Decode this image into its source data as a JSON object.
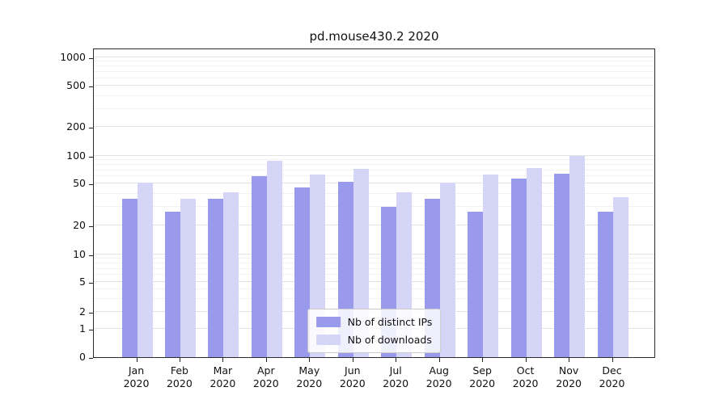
{
  "title": "pd.mouse430.2 2020",
  "chart_data": {
    "type": "bar",
    "title": "pd.mouse430.2 2020",
    "yscale": "symlog",
    "grid": true,
    "legend_position": "lower center",
    "categories": [
      "Jan 2020",
      "Feb 2020",
      "Mar 2020",
      "Apr 2020",
      "May 2020",
      "Jun 2020",
      "Jul 2020",
      "Aug 2020",
      "Sep 2020",
      "Oct 2020",
      "Nov 2020",
      "Dec 2020"
    ],
    "y_ticks": [
      0,
      1,
      2,
      5,
      10,
      20,
      50,
      100,
      200,
      500,
      1000
    ],
    "ylim": [
      0,
      1400
    ],
    "series": [
      {
        "name": "Nb of distinct IPs",
        "color": "#9a9aed",
        "values": [
          36,
          27,
          36,
          60,
          46,
          52,
          30,
          36,
          27,
          57,
          64,
          27
        ]
      },
      {
        "name": "Nb of downloads",
        "color": "#d5d5f7",
        "values": [
          51,
          36,
          41,
          88,
          63,
          72,
          41,
          51,
          62,
          73,
          100,
          37
        ]
      }
    ]
  }
}
